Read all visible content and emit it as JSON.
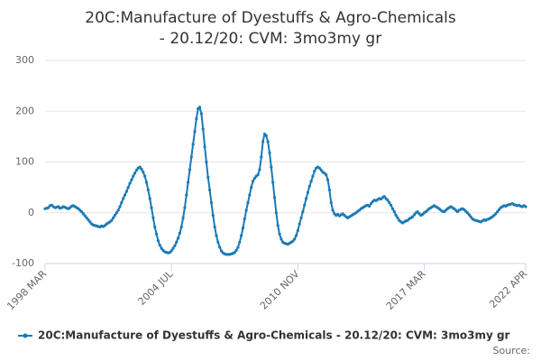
{
  "chart_data": {
    "type": "line",
    "title": "20C:Manufacture of Dyestuffs & Agro-Chemicals - 20.12/20: CVM: 3mo3my gr",
    "source_label": "Source:",
    "categories": [
      "1998 MAR",
      null,
      null,
      null,
      null,
      null,
      null,
      null,
      null,
      null,
      null,
      null,
      null,
      null,
      null,
      null,
      null,
      null,
      null,
      null,
      null,
      null,
      null,
      null,
      null,
      null,
      null,
      null,
      null,
      null,
      null,
      null,
      null,
      null,
      null,
      null,
      null,
      null,
      null,
      null,
      null,
      null,
      null,
      null,
      null,
      null,
      null,
      null,
      null,
      null,
      null,
      null,
      null,
      null,
      null,
      null,
      null,
      null,
      null,
      null,
      null,
      null,
      null,
      null,
      null,
      null,
      null,
      null,
      null,
      null,
      null,
      null,
      null,
      null,
      null,
      null,
      "2004 JUL",
      null,
      null,
      null,
      null,
      null,
      null,
      null,
      null,
      null,
      null,
      null,
      null,
      null,
      null,
      null,
      null,
      null,
      null,
      null,
      null,
      null,
      null,
      null,
      null,
      null,
      null,
      null,
      null,
      null,
      null,
      null,
      null,
      null,
      null,
      null,
      null,
      null,
      null,
      null,
      null,
      null,
      null,
      null,
      null,
      null,
      null,
      null,
      null,
      null,
      null,
      null,
      null,
      null,
      null,
      null,
      null,
      null,
      null,
      null,
      null,
      null,
      null,
      null,
      null,
      null,
      null,
      null,
      null,
      null,
      null,
      null,
      null,
      null,
      null,
      null,
      "2010 NOV",
      null,
      null,
      null,
      null,
      null,
      null,
      null,
      null,
      null,
      null,
      null,
      null,
      null,
      null,
      null,
      null,
      null,
      null,
      null,
      null,
      null,
      null,
      null,
      null,
      null,
      null,
      null,
      null,
      null,
      null,
      null,
      null,
      null,
      null,
      null,
      null,
      null,
      null,
      null,
      null,
      null,
      null,
      null,
      null,
      null,
      null,
      null,
      null,
      null,
      null,
      null,
      null,
      null,
      null,
      null,
      null,
      null,
      null,
      null,
      null,
      null,
      null,
      null,
      null,
      null,
      null,
      null,
      null,
      null,
      null,
      null,
      null,
      null,
      null,
      null,
      "2017 MAR",
      null,
      null,
      null,
      null,
      null,
      null,
      null,
      null,
      null,
      null,
      null,
      null,
      null,
      null,
      null,
      null,
      null,
      null,
      null,
      null,
      null,
      null,
      null,
      null,
      null,
      null,
      null,
      null,
      null,
      null,
      null,
      null,
      null,
      null,
      null,
      null,
      null,
      null,
      null,
      null,
      null,
      null,
      null,
      null,
      null,
      null,
      null,
      null,
      null,
      null,
      null,
      null,
      null,
      null,
      null,
      null,
      null,
      null,
      null,
      null,
      "2022 APR"
    ],
    "series": [
      {
        "name": "20C:Manufacture of Dyestuffs & Agro-Chemicals - 20.12/20: CVM: 3mo3my gr",
        "color": "#1a7ab5",
        "values": [
          8,
          9,
          10,
          14,
          15,
          12,
          10,
          11,
          12,
          9,
          10,
          12,
          11,
          9,
          8,
          10,
          13,
          14,
          12,
          10,
          8,
          5,
          2,
          -2,
          -6,
          -10,
          -14,
          -18,
          -22,
          -24,
          -25,
          -26,
          -27,
          -28,
          -26,
          -27,
          -25,
          -22,
          -20,
          -18,
          -15,
          -10,
          -5,
          0,
          5,
          12,
          20,
          28,
          35,
          42,
          50,
          58,
          65,
          72,
          78,
          84,
          88,
          90,
          86,
          80,
          72,
          60,
          45,
          28,
          10,
          -10,
          -28,
          -42,
          -55,
          -64,
          -70,
          -74,
          -77,
          -78,
          -79,
          -78,
          -75,
          -70,
          -65,
          -58,
          -50,
          -40,
          -28,
          -10,
          10,
          35,
          60,
          85,
          110,
          135,
          160,
          185,
          205,
          208,
          195,
          165,
          130,
          100,
          70,
          45,
          20,
          -5,
          -28,
          -45,
          -58,
          -68,
          -75,
          -79,
          -81,
          -82,
          -82,
          -82,
          -81,
          -80,
          -78,
          -74,
          -68,
          -58,
          -45,
          -30,
          -12,
          5,
          20,
          35,
          50,
          62,
          68,
          72,
          75,
          85,
          110,
          140,
          155,
          152,
          140,
          118,
          90,
          60,
          30,
          0,
          -25,
          -42,
          -52,
          -58,
          -60,
          -61,
          -62,
          -60,
          -58,
          -56,
          -52,
          -45,
          -35,
          -22,
          -10,
          2,
          15,
          28,
          40,
          52,
          62,
          72,
          82,
          88,
          90,
          88,
          84,
          80,
          78,
          75,
          65,
          45,
          20,
          5,
          -2,
          -5,
          -3,
          -6,
          -4,
          -2,
          -5,
          -8,
          -10,
          -8,
          -6,
          -4,
          -2,
          0,
          3,
          5,
          8,
          10,
          12,
          14,
          15,
          13,
          18,
          22,
          25,
          24,
          26,
          28,
          27,
          30,
          32,
          28,
          25,
          20,
          15,
          8,
          2,
          -5,
          -10,
          -15,
          -18,
          -20,
          -18,
          -16,
          -15,
          -12,
          -10,
          -8,
          -4,
          0,
          2,
          -2,
          -5,
          -3,
          0,
          2,
          5,
          8,
          10,
          12,
          14,
          12,
          10,
          8,
          5,
          3,
          2,
          5,
          8,
          10,
          12,
          10,
          8,
          5,
          2,
          5,
          7,
          8,
          6,
          3,
          0,
          -4,
          -8,
          -12,
          -14,
          -15,
          -16,
          -17,
          -18,
          -16,
          -14,
          -15,
          -13,
          -12,
          -10,
          -8,
          -5,
          -2,
          2,
          6,
          10,
          12,
          14,
          13,
          15,
          16,
          17,
          18,
          16,
          15,
          14,
          15,
          13,
          12,
          14,
          12
        ]
      }
    ],
    "ylim": [
      -100,
      300
    ],
    "yticks": [
      -100,
      0,
      100,
      200,
      300
    ],
    "grid": true
  }
}
